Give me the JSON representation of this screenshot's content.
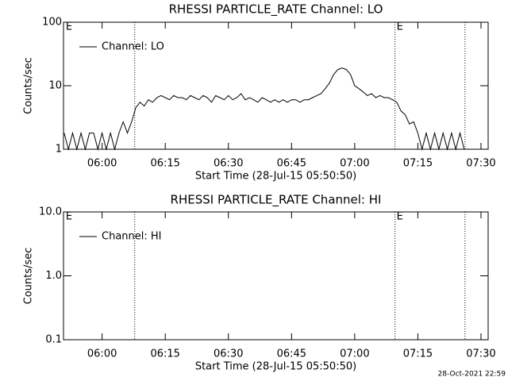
{
  "chart_data": [
    {
      "type": "line",
      "title": "RHESSI PARTICLE_RATE Channel: LO",
      "ylabel": "Counts/sec",
      "xlabel": "Start Time (28-Jul-15 05:50:50)",
      "log_y": true,
      "ylim": [
        1,
        100
      ],
      "yticks": [
        1,
        10,
        100
      ],
      "xlim": [
        350.83,
        451.7
      ],
      "xticks": [
        {
          "value": 360,
          "label": "06:00"
        },
        {
          "value": 375,
          "label": "06:15"
        },
        {
          "value": 390,
          "label": "06:30"
        },
        {
          "value": 405,
          "label": "06:45"
        },
        {
          "value": 420,
          "label": "07:00"
        },
        {
          "value": 435,
          "label": "07:15"
        },
        {
          "value": 450,
          "label": "07:30"
        }
      ],
      "legend": "upper left",
      "event_lines": [
        367.75,
        429.57,
        446.2
      ],
      "event_labels": [
        {
          "x": 351,
          "label": "E"
        },
        {
          "x": 429.57,
          "label": "E"
        }
      ],
      "series": [
        {
          "name": "Channel: LO",
          "color": "#000000",
          "x": [
            351,
            352,
            353,
            354,
            355,
            356,
            357,
            358,
            359,
            360,
            361,
            362,
            363,
            364,
            365,
            366,
            367,
            368,
            369,
            370,
            371,
            372,
            373,
            374,
            375,
            376,
            377,
            378,
            379,
            380,
            381,
            382,
            383,
            384,
            385,
            386,
            387,
            388,
            389,
            390,
            391,
            392,
            393,
            394,
            395,
            396,
            397,
            398,
            399,
            400,
            401,
            402,
            403,
            404,
            405,
            406,
            407,
            408,
            409,
            410,
            411,
            412,
            413,
            414,
            415,
            416,
            417,
            418,
            419,
            420,
            421,
            422,
            423,
            424,
            425,
            426,
            427,
            428,
            429,
            430,
            431,
            432,
            433,
            434,
            435,
            436,
            437,
            438,
            439,
            440,
            441,
            442,
            443,
            444,
            445,
            446
          ],
          "values": [
            1.8,
            1,
            1.8,
            1,
            1.8,
            1,
            1.8,
            1.8,
            1,
            1.8,
            1,
            1.8,
            1,
            1.8,
            2.7,
            1.8,
            2.7,
            4.5,
            5.5,
            4.8,
            6,
            5.5,
            6.5,
            7,
            6.5,
            6,
            7,
            6.5,
            6.5,
            6,
            7,
            6.5,
            6,
            7,
            6.5,
            5.5,
            7,
            6.5,
            6,
            7,
            6,
            6.5,
            7.5,
            6,
            6.5,
            6,
            5.5,
            6.5,
            6,
            5.5,
            6,
            5.5,
            6,
            5.5,
            6,
            6,
            5.5,
            6,
            6,
            6.5,
            7,
            7.5,
            9,
            11,
            15,
            18,
            19,
            18,
            15,
            10,
            9,
            8,
            7,
            7.5,
            6.5,
            7,
            6.5,
            6.5,
            6,
            5.5,
            4,
            3.5,
            2.5,
            2.7,
            1.8,
            1,
            1.8,
            1,
            1.8,
            1,
            1.8,
            1,
            1.8,
            1,
            1.8,
            1
          ]
        }
      ]
    },
    {
      "type": "line",
      "title": "RHESSI PARTICLE_RATE Channel: HI",
      "ylabel": "Counts/sec",
      "xlabel": "Start Time (28-Jul-15 05:50:50)",
      "log_y": true,
      "ylim": [
        0.1,
        10
      ],
      "yticks": [
        0.1,
        {
          "value": 1,
          "label": "1.0"
        },
        {
          "value": 10,
          "label": "10.0"
        }
      ],
      "xlim": [
        350.83,
        451.7
      ],
      "xticks": [
        {
          "value": 360,
          "label": "06:00"
        },
        {
          "value": 375,
          "label": "06:15"
        },
        {
          "value": 390,
          "label": "06:30"
        },
        {
          "value": 405,
          "label": "06:45"
        },
        {
          "value": 420,
          "label": "07:00"
        },
        {
          "value": 435,
          "label": "07:15"
        },
        {
          "value": 450,
          "label": "07:30"
        }
      ],
      "legend": "upper left",
      "event_lines": [
        367.75,
        429.57,
        446.2
      ],
      "event_labels": [
        {
          "x": 351,
          "label": "E"
        },
        {
          "x": 429.57,
          "label": "E"
        }
      ],
      "series": [
        {
          "name": "Channel: HI",
          "color": "#000000",
          "x": [],
          "values": []
        }
      ]
    }
  ],
  "footer": "28-Oct-2021 22:59"
}
